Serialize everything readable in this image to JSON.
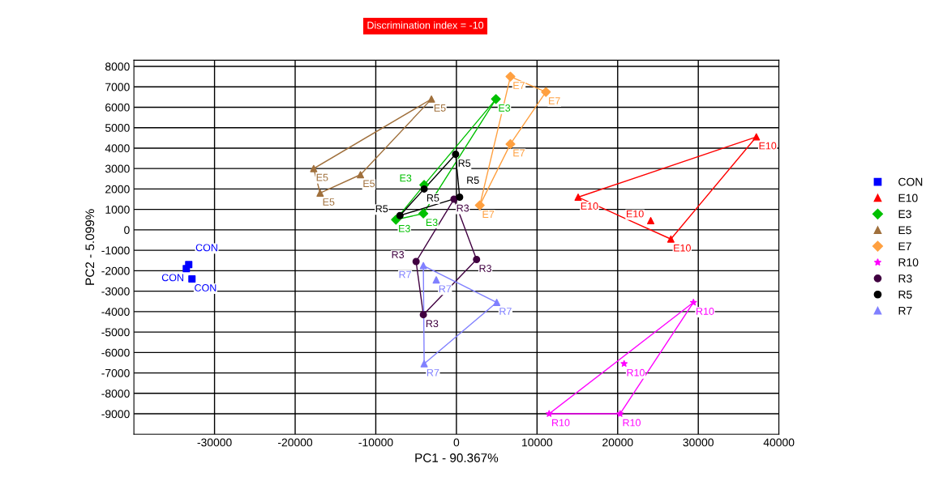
{
  "chart_data": {
    "type": "scatter",
    "title": "Discrimination index = -10",
    "xlabel": "PC1 - 90.367%",
    "ylabel": "PC2 - 5.099%",
    "xlim": [
      -40000,
      40000
    ],
    "ylim": [
      -10000,
      8300
    ],
    "xticks": [
      -30000,
      -20000,
      -10000,
      0,
      10000,
      20000,
      30000,
      40000
    ],
    "yticks": [
      -9000,
      -8000,
      -7000,
      -6000,
      -5000,
      -4000,
      -3000,
      -2000,
      -1000,
      0,
      1000,
      2000,
      3000,
      4000,
      5000,
      6000,
      7000,
      8000
    ],
    "grid": true,
    "legend": "right",
    "series": [
      {
        "name": "CON",
        "color": "#0000ff",
        "marker": "square",
        "x": [
          -33500,
          -33200,
          -32800
        ],
        "values": [
          -1900,
          -1700,
          -2400
        ]
      },
      {
        "name": "E10",
        "color": "#ff0000",
        "marker": "triangle",
        "x": [
          37200,
          15100,
          24100,
          26600
        ],
        "values": [
          4550,
          1600,
          450,
          -450
        ]
      },
      {
        "name": "E3",
        "color": "#00c000",
        "marker": "diamond",
        "x": [
          4900,
          -4000,
          -7500,
          -4100
        ],
        "values": [
          6400,
          2200,
          500,
          800
        ]
      },
      {
        "name": "E5",
        "color": "#a0703c",
        "marker": "triangle",
        "x": [
          -3100,
          -17700,
          -11900,
          -16900
        ],
        "values": [
          6400,
          3000,
          2700,
          1800
        ]
      },
      {
        "name": "E7",
        "color": "#ffa040",
        "marker": "diamond",
        "x": [
          6700,
          11100,
          6700,
          2900
        ],
        "values": [
          7500,
          6750,
          4200,
          1200
        ]
      },
      {
        "name": "R10",
        "color": "#ff00ff",
        "marker": "star",
        "x": [
          29400,
          20800,
          11500,
          20300
        ],
        "values": [
          -3550,
          -6550,
          -9000,
          -9000
        ]
      },
      {
        "name": "R3",
        "color": "#400040",
        "marker": "circle",
        "x": [
          -300,
          -5000,
          2500,
          -4100
        ],
        "values": [
          1500,
          -1550,
          -1450,
          -4150
        ]
      },
      {
        "name": "R5",
        "color": "#000000",
        "marker": "circle",
        "x": [
          -100,
          -4000,
          400,
          -7000
        ],
        "values": [
          3700,
          2000,
          1600,
          700
        ]
      },
      {
        "name": "R7",
        "color": "#8080ff",
        "marker": "triangle",
        "x": [
          -4100,
          -2500,
          5000,
          -4000
        ],
        "values": [
          -1750,
          -2450,
          -3550,
          -6550
        ]
      },
      {
        "type": "line",
        "color": "#ff0000",
        "x": [
          15100,
          26600,
          37200
        ],
        "values": [
          1600,
          -450,
          4550
        ]
      },
      {
        "type": "line",
        "color": "#ff0000",
        "x": [
          15100,
          37200
        ],
        "values": [
          1600,
          4550
        ]
      },
      {
        "type": "line",
        "color": "#00c000",
        "x": [
          -7500,
          -4100,
          4900
        ],
        "values": [
          500,
          800,
          6400
        ]
      },
      {
        "type": "line",
        "color": "#00c000",
        "x": [
          -7500,
          -4000,
          4900
        ],
        "values": [
          500,
          2200,
          6400
        ]
      },
      {
        "type": "line",
        "color": "#a0703c",
        "x": [
          -17700,
          -16900,
          -11900,
          -3100
        ],
        "values": [
          3000,
          1800,
          2700,
          6400
        ]
      },
      {
        "type": "line",
        "color": "#a0703c",
        "x": [
          -17700,
          -3100
        ],
        "values": [
          3000,
          6400
        ]
      },
      {
        "type": "line",
        "color": "#ffa040",
        "x": [
          2900,
          6700,
          11100
        ],
        "values": [
          1200,
          4200,
          6750
        ]
      },
      {
        "type": "line",
        "color": "#ffa040",
        "x": [
          2900,
          6700,
          11100
        ],
        "values": [
          1200,
          7500,
          6750
        ]
      },
      {
        "type": "line",
        "color": "#ff00ff",
        "x": [
          11500,
          20300,
          29400
        ],
        "values": [
          -9000,
          -9000,
          -3550
        ]
      },
      {
        "type": "line",
        "color": "#ff00ff",
        "x": [
          11500,
          29400
        ],
        "values": [
          -9000,
          -3550
        ]
      },
      {
        "type": "line",
        "color": "#400040",
        "x": [
          -5000,
          -4100,
          2500
        ],
        "values": [
          -1550,
          -4150,
          -1450
        ]
      },
      {
        "type": "line",
        "color": "#400040",
        "x": [
          -5000,
          -300,
          2500
        ],
        "values": [
          -1550,
          1500,
          -1450
        ]
      },
      {
        "type": "line",
        "color": "#000000",
        "x": [
          -7000,
          400
        ],
        "values": [
          700,
          1600
        ]
      },
      {
        "type": "line",
        "color": "#000000",
        "x": [
          -7000,
          -100,
          400
        ],
        "values": [
          700,
          3700,
          1600
        ]
      },
      {
        "type": "line",
        "color": "#8080ff",
        "x": [
          -4100,
          -4000,
          5000
        ],
        "values": [
          -1750,
          -6550,
          -3550
        ]
      },
      {
        "type": "line",
        "color": "#8080ff",
        "x": [
          -4100,
          5000
        ],
        "values": [
          -1750,
          -3550
        ]
      }
    ]
  }
}
